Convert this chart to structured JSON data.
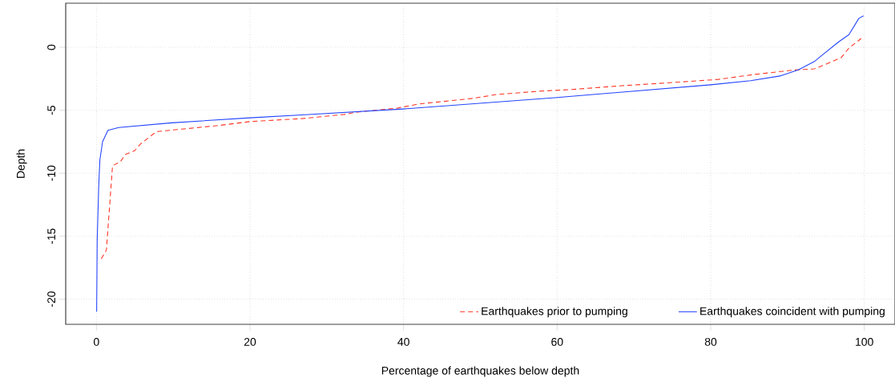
{
  "chart_data": {
    "type": "line",
    "xlabel": "Percentage of earthquakes below depth",
    "ylabel": "Depth",
    "xlim": [
      -4,
      104
    ],
    "ylim": [
      -22,
      3.5
    ],
    "xticks": [
      0,
      20,
      40,
      60,
      80,
      100
    ],
    "yticks": [
      -20,
      -15,
      -10,
      -5,
      0
    ],
    "grid": true,
    "legend": "bottom right",
    "series": [
      {
        "name": "Earthquakes prior to pumping",
        "color": "#ff3322",
        "line_style": "dashed",
        "x": [
          0.63,
          1.3,
          2.1,
          3.1,
          3.8,
          5.0,
          5.7,
          7.8,
          16.1,
          20,
          27,
          32.3,
          34,
          39.2,
          42,
          49,
          52.1,
          57.6,
          61.8,
          68.5,
          75,
          81,
          85.5,
          91,
          93.5,
          94.6,
          97,
          98,
          99.6
        ],
        "values": [
          -16.8,
          -16.1,
          -9.4,
          -9.1,
          -8.5,
          -8.2,
          -7.7,
          -6.7,
          -6.2,
          -5.9,
          -5.65,
          -5.33,
          -5.14,
          -4.83,
          -4.5,
          -4.06,
          -3.75,
          -3.49,
          -3.36,
          -3.05,
          -2.8,
          -2.55,
          -2.17,
          -1.8,
          -1.71,
          -1.45,
          -0.82,
          -0.06,
          0.7
        ]
      },
      {
        "name": "Earthquakes coincident with pumping",
        "color": "#2244ff",
        "line_style": "solid",
        "x": [
          0.03,
          0.1,
          0.3,
          0.45,
          0.8,
          1.5,
          2.9,
          9.8,
          20,
          27.2,
          39.9,
          59.7,
          68.5,
          80,
          85.2,
          89,
          91.4,
          93.5,
          94.6,
          96.7,
          98,
          99.3,
          99.9
        ],
        "values": [
          -21.0,
          -15.3,
          -11.0,
          -8.95,
          -7.5,
          -6.6,
          -6.37,
          -6.0,
          -5.6,
          -5.35,
          -4.9,
          -4.0,
          -3.56,
          -2.98,
          -2.65,
          -2.28,
          -1.79,
          -1.13,
          -0.58,
          0.45,
          1.0,
          2.3,
          2.5
        ]
      }
    ]
  }
}
